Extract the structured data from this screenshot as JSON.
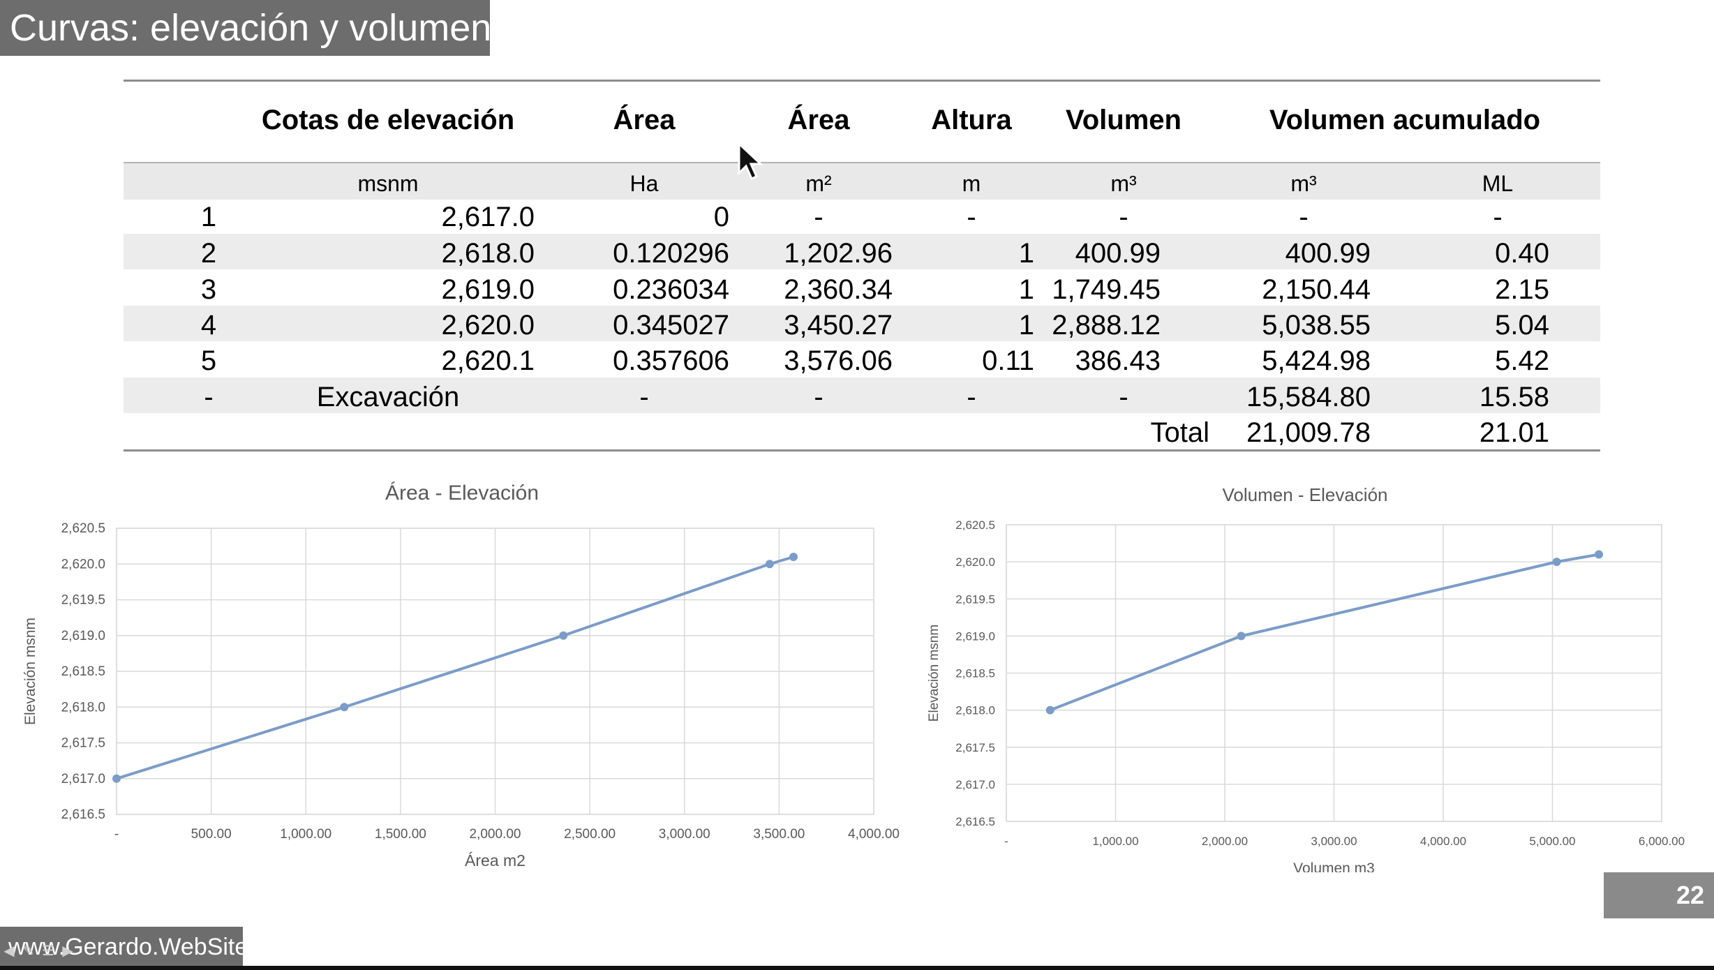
{
  "slide": {
    "title": "Curvas: elevación y volumen",
    "page_number": "22",
    "footer": "www.Gerardo.WebSite"
  },
  "table": {
    "headers": [
      "Cotas de elevación",
      "Área",
      "Área",
      "Altura",
      "Volumen",
      "Volumen acumulado"
    ],
    "units": [
      "msnm",
      "Ha",
      "m²",
      "m",
      "m³",
      "m³",
      "ML"
    ],
    "rows": [
      [
        "1",
        "2,617.0",
        "0",
        "-",
        "-",
        "-",
        "-",
        "-"
      ],
      [
        "2",
        "2,618.0",
        "0.120296",
        "1,202.96",
        "1",
        "400.99",
        "400.99",
        "0.40"
      ],
      [
        "3",
        "2,619.0",
        "0.236034",
        "2,360.34",
        "1",
        "1,749.45",
        "2,150.44",
        "2.15"
      ],
      [
        "4",
        "2,620.0",
        "0.345027",
        "3,450.27",
        "1",
        "2,888.12",
        "5,038.55",
        "5.04"
      ],
      [
        "5",
        "2,620.1",
        "0.357606",
        "3,576.06",
        "0.11",
        "386.43",
        "5,424.98",
        "5.42"
      ],
      [
        "-",
        "Excavación",
        "-",
        "-",
        "-",
        "-",
        "15,584.80",
        "15.58"
      ]
    ],
    "total": {
      "label": "Total",
      "volumen_acumulado": "21,009.78",
      "ml": "21.01"
    }
  },
  "chart_data": [
    {
      "type": "line",
      "title": "Área - Elevación",
      "xlabel": "Área m2",
      "ylabel": "Elevación msnm",
      "xlim": [
        0,
        4000
      ],
      "ylim": [
        2616.5,
        2620.5
      ],
      "xticks": [
        "-",
        "500.00",
        "1,000.00",
        "1,500.00",
        "2,000.00",
        "2,500.00",
        "3,000.00",
        "3,500.00",
        "4,000.00"
      ],
      "yticks": [
        "2,616.5",
        "2,617.0",
        "2,617.5",
        "2,618.0",
        "2,618.5",
        "2,619.0",
        "2,619.5",
        "2,620.0",
        "2,620.5"
      ],
      "grid": true,
      "color": "#7b9cc9",
      "x": [
        0,
        1202.96,
        2360.34,
        3450.27,
        3576.06
      ],
      "y": [
        2617.0,
        2618.0,
        2619.0,
        2620.0,
        2620.1
      ]
    },
    {
      "type": "line",
      "title": "Volumen - Elevación",
      "xlabel": "Volumen m3",
      "ylabel": "Elevación msnm",
      "xlim": [
        0,
        6000
      ],
      "ylim": [
        2616.5,
        2620.5
      ],
      "xticks": [
        "-",
        "1,000.00",
        "2,000.00",
        "3,000.00",
        "4,000.00",
        "5,000.00",
        "6,000.00"
      ],
      "yticks": [
        "2,616.5",
        "2,617.0",
        "2,617.5",
        "2,618.0",
        "2,618.5",
        "2,619.0",
        "2,619.5",
        "2,620.0",
        "2,620.5"
      ],
      "grid": true,
      "color": "#7b9cc9",
      "x": [
        400.99,
        2150.44,
        5038.55,
        5424.98
      ],
      "y": [
        2618.0,
        2619.0,
        2620.0,
        2620.1
      ]
    }
  ]
}
